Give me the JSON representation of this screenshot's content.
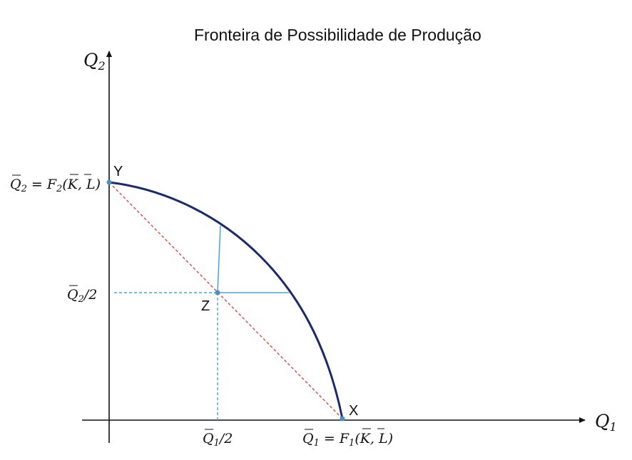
{
  "title": "Fronteira de Possibilidade de Produção",
  "axes": {
    "y_label": {
      "main": "Q",
      "sub": "2"
    },
    "x_label": {
      "main": "Q",
      "sub": "1"
    }
  },
  "tick_labels": {
    "y_max": {
      "q": "Q",
      "sub": "2",
      "rest": " = F",
      "fsub": "2",
      "args": "(K, L)"
    },
    "y_half": {
      "q": "Q",
      "sub": "2",
      "rest": "/2"
    },
    "x_half": {
      "q": "Q",
      "sub": "1",
      "rest": "/2"
    },
    "x_max": {
      "q": "Q",
      "sub": "1",
      "rest": " = F",
      "fsub": "1",
      "args": "(K, L)"
    }
  },
  "points": {
    "Y": "Y",
    "Z": "Z",
    "X": "X"
  },
  "colors": {
    "axis": "#111111",
    "frontier": "#1a2a6c",
    "chord": "#e8433a",
    "guide": "#4aa3d8",
    "point": "#4a90c8"
  }
}
